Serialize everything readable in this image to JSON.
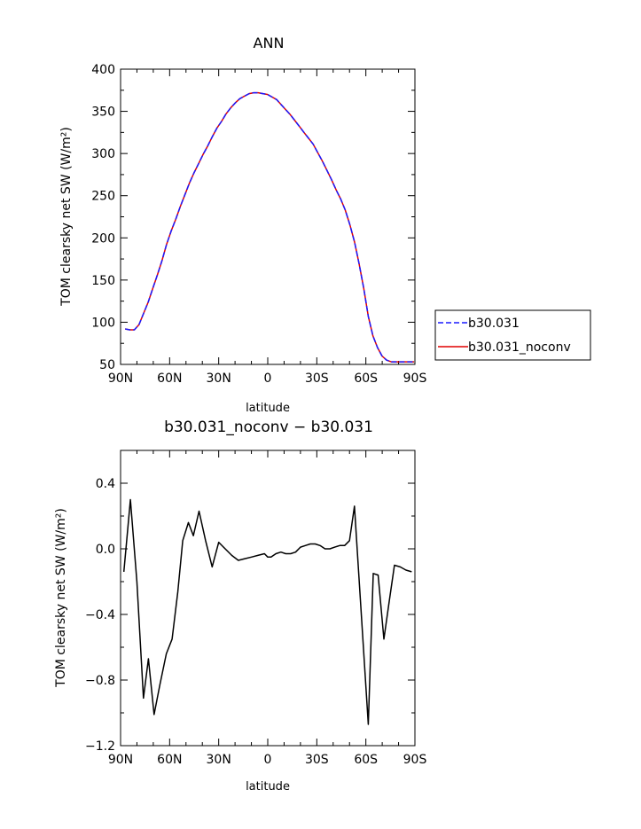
{
  "chart_data": [
    {
      "type": "line",
      "title": "ANN",
      "xlabel": "latitude",
      "ylabel": "TOM clearsky net SW (W/m²)",
      "xlim": [
        90,
        -90
      ],
      "ylim": [
        50,
        400
      ],
      "x_ticks": [
        90,
        60,
        30,
        0,
        -30,
        -60,
        -90
      ],
      "x_tick_labels": [
        "90N",
        "60N",
        "30N",
        "0",
        "30S",
        "60S",
        "90S"
      ],
      "y_ticks": [
        50,
        100,
        150,
        200,
        250,
        300,
        350,
        400
      ],
      "y_tick_labels": [
        "50",
        "100",
        "150",
        "200",
        "250",
        "300",
        "350",
        "400"
      ],
      "legend": {
        "placement": "right"
      },
      "series": [
        {
          "name": "b30.031",
          "color": "#1a1aff",
          "dash": "dashed",
          "x": [
            87.2,
            84.4,
            81.6,
            78.8,
            76.0,
            73.1,
            70.3,
            67.5,
            64.7,
            61.9,
            59.1,
            56.3,
            53.5,
            50.7,
            47.9,
            45.1,
            42.3,
            39.5,
            36.7,
            33.9,
            31.1,
            28.3,
            25.5,
            22.7,
            19.9,
            17.1,
            14.2,
            11.4,
            8.6,
            5.8,
            3.0,
            0.2,
            -2.6,
            -5.4,
            -8.2,
            -11.0,
            -13.8,
            -16.6,
            -19.4,
            -22.2,
            -25.0,
            -27.8,
            -30.6,
            -33.4,
            -36.2,
            -39.0,
            -41.8,
            -44.6,
            -47.4,
            -50.3,
            -53.1,
            -55.9,
            -58.7,
            -61.5,
            -64.3,
            -67.1,
            -69.9,
            -72.7,
            -75.5,
            -78.3,
            -81.1,
            -83.9,
            -86.7,
            -89.5
          ],
          "values": [
            92,
            91,
            91,
            97,
            110,
            124,
            140,
            156,
            173,
            192,
            208,
            222,
            237,
            251,
            265,
            277,
            288,
            299,
            309,
            320,
            330,
            338,
            347,
            354,
            360,
            365,
            368,
            371,
            372,
            372,
            371,
            370,
            367,
            364,
            358,
            352,
            346,
            339,
            332,
            325,
            318,
            311,
            301,
            291,
            280,
            269,
            257,
            246,
            233,
            215,
            195,
            169,
            140,
            107,
            84,
            70,
            60,
            55,
            53,
            53,
            53,
            53,
            53,
            53
          ]
        },
        {
          "name": "b30.031_noconv",
          "color": "#e00000",
          "dash": "solid",
          "x": [
            87.2,
            84.4,
            81.6,
            78.8,
            76.0,
            73.1,
            70.3,
            67.5,
            64.7,
            61.9,
            59.1,
            56.3,
            53.5,
            50.7,
            47.9,
            45.1,
            42.3,
            39.5,
            36.7,
            33.9,
            31.1,
            28.3,
            25.5,
            22.7,
            19.9,
            17.1,
            14.2,
            11.4,
            8.6,
            5.8,
            3.0,
            0.2,
            -2.6,
            -5.4,
            -8.2,
            -11.0,
            -13.8,
            -16.6,
            -19.4,
            -22.2,
            -25.0,
            -27.8,
            -30.6,
            -33.4,
            -36.2,
            -39.0,
            -41.8,
            -44.6,
            -47.4,
            -50.3,
            -53.1,
            -55.9,
            -58.7,
            -61.5,
            -64.3,
            -67.1,
            -69.9,
            -72.7,
            -75.5,
            -78.3,
            -81.1,
            -83.9,
            -86.7,
            -89.5
          ],
          "values": [
            92,
            91,
            91,
            97,
            110,
            124,
            140,
            156,
            173,
            192,
            208,
            222,
            237,
            251,
            265,
            277,
            288,
            299,
            309,
            320,
            330,
            338,
            347,
            354,
            360,
            365,
            368,
            371,
            372,
            372,
            371,
            370,
            367,
            364,
            358,
            352,
            346,
            339,
            332,
            325,
            318,
            311,
            301,
            291,
            280,
            269,
            257,
            246,
            233,
            215,
            195,
            169,
            140,
            107,
            84,
            70,
            60,
            55,
            53,
            53,
            53,
            53,
            53,
            53
          ]
        }
      ]
    },
    {
      "type": "line",
      "title": "b30.031_noconv − b30.031",
      "xlabel": "latitude",
      "ylabel": "TOM clearsky net SW (W/m²)",
      "xlim": [
        90,
        -90
      ],
      "ylim": [
        -1.2,
        0.6
      ],
      "x_ticks": [
        90,
        60,
        30,
        0,
        -30,
        -60,
        -90
      ],
      "x_tick_labels": [
        "90N",
        "60N",
        "30N",
        "0",
        "30S",
        "60S",
        "90S"
      ],
      "y_ticks": [
        -1.2,
        -0.8,
        -0.4,
        0.0,
        0.4
      ],
      "y_tick_labels": [
        "−1.2",
        "−0.8",
        "−0.4",
        "0.0",
        "0.4"
      ],
      "series": [
        {
          "color": "#000000",
          "dash": "solid",
          "x": [
            88,
            84,
            80,
            76,
            73,
            69.5,
            66,
            62,
            58.5,
            55,
            52,
            48.5,
            45.5,
            42,
            38,
            34,
            30,
            26,
            22,
            18,
            14,
            10,
            6,
            2,
            0,
            -2,
            -5,
            -8,
            -11,
            -14,
            -17,
            -20,
            -23,
            -26,
            -29,
            -32,
            -35,
            -38,
            -41,
            -44,
            -47,
            -50,
            -53,
            -61.5,
            -64.5,
            -67.5,
            -71,
            -74,
            -77.5,
            -81,
            -84.5,
            -88
          ],
          "values": [
            -0.14,
            0.3,
            -0.2,
            -0.91,
            -0.67,
            -1.01,
            -0.83,
            -0.64,
            -0.55,
            -0.26,
            0.05,
            0.16,
            0.08,
            0.23,
            0.05,
            -0.11,
            0.04,
            0.0,
            -0.04,
            -0.07,
            -0.06,
            -0.05,
            -0.04,
            -0.03,
            -0.05,
            -0.05,
            -0.03,
            -0.02,
            -0.03,
            -0.03,
            -0.02,
            0.01,
            0.02,
            0.03,
            0.03,
            0.02,
            0.0,
            0.0,
            0.01,
            0.02,
            0.02,
            0.05,
            0.26,
            -1.07,
            -0.15,
            -0.16,
            -0.55,
            -0.34,
            -0.1,
            -0.11,
            -0.13,
            -0.14
          ]
        }
      ]
    }
  ]
}
